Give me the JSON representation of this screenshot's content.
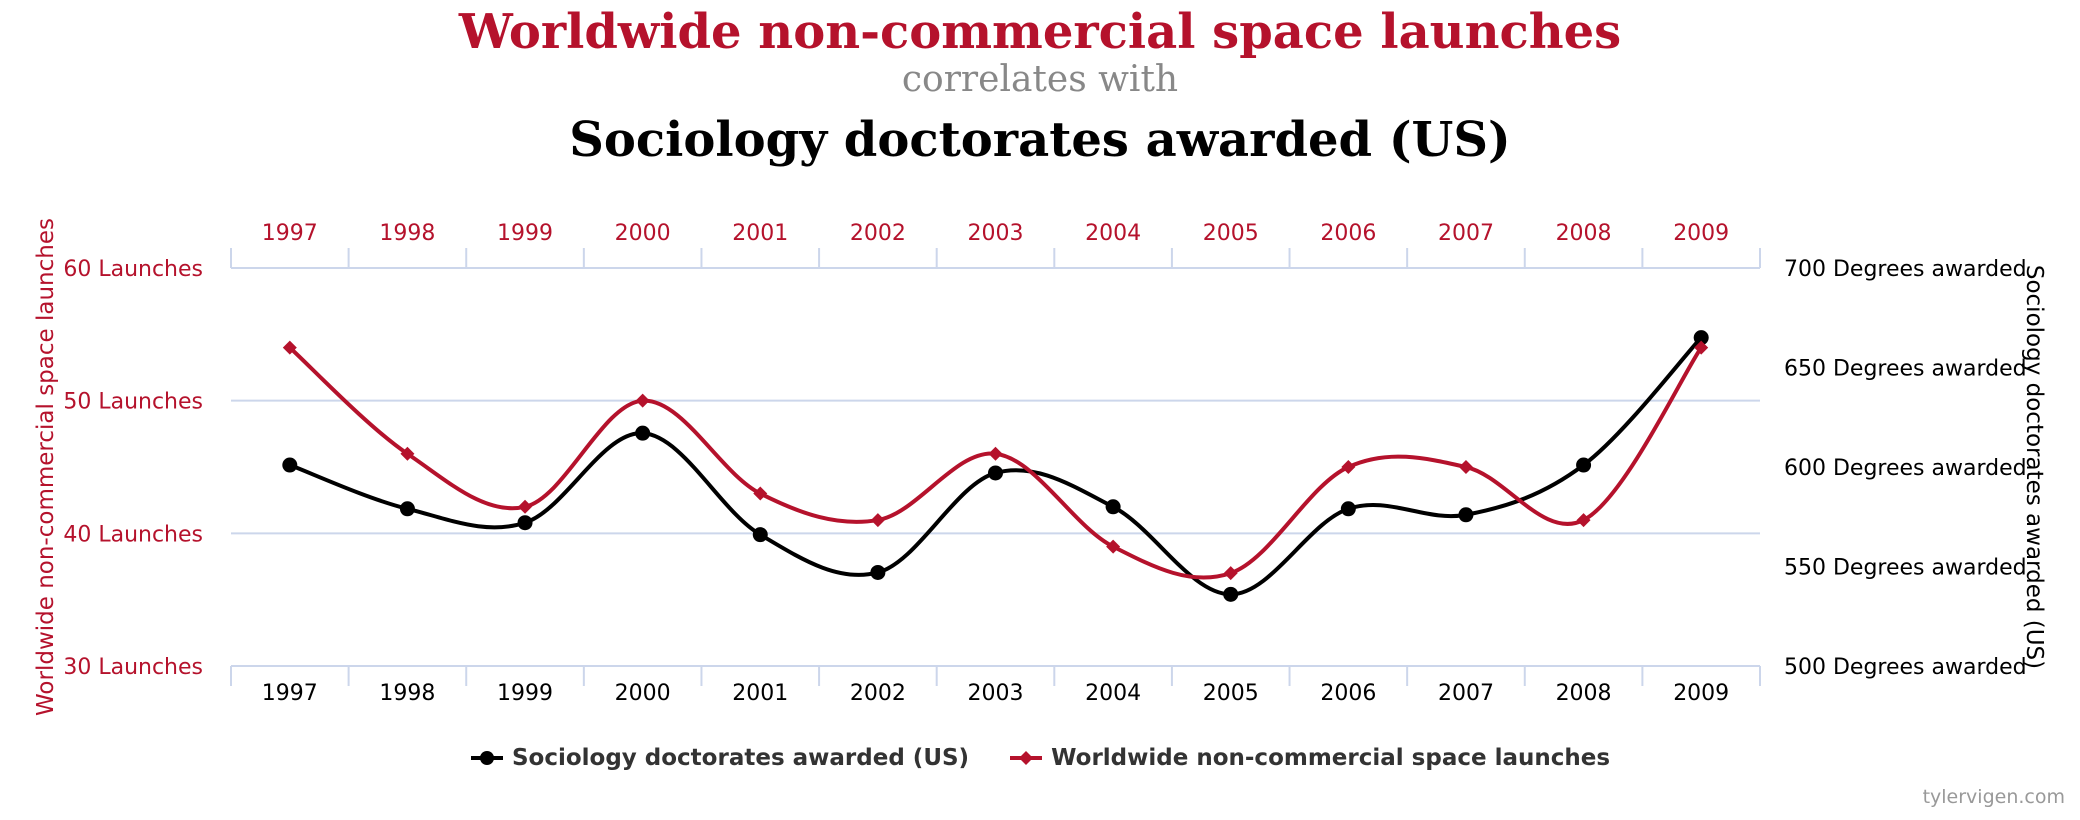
{
  "header": {
    "title1": "Worldwide non-commercial space launches",
    "connector": "correlates with",
    "title2": "Sociology doctorates awarded (US)"
  },
  "colors": {
    "launches": "#b5122c",
    "doctorates": "#000000",
    "axis": "#ccd6eb",
    "grid": "#ccd6eb"
  },
  "chart_data": {
    "type": "line",
    "x": [
      "1997",
      "1998",
      "1999",
      "2000",
      "2001",
      "2002",
      "2003",
      "2004",
      "2005",
      "2006",
      "2007",
      "2008",
      "2009"
    ],
    "left_axis": {
      "label": "Worldwide non-commercial space launches",
      "ylim": [
        30,
        60
      ],
      "ticks": [
        30,
        40,
        50,
        60
      ],
      "tick_labels": [
        "30 Launches",
        "40 Launches",
        "50 Launches",
        "60 Launches"
      ]
    },
    "right_axis": {
      "label": "Sociology doctorates awarded (US)",
      "ylim": [
        500,
        700
      ],
      "ticks": [
        500,
        550,
        600,
        650,
        700
      ],
      "tick_labels": [
        "500 Degrees awarded",
        "550 Degrees awarded",
        "600 Degrees awarded",
        "650 Degrees awarded",
        "700 Degrees awarded"
      ]
    },
    "series": [
      {
        "name": "Sociology doctorates awarded (US)",
        "axis": "right",
        "color": "#000000",
        "marker": "circle",
        "values": [
          601,
          579,
          572,
          617,
          566,
          547,
          597,
          580,
          536,
          579,
          576,
          601,
          665
        ]
      },
      {
        "name": "Worldwide non-commercial space launches",
        "axis": "left",
        "color": "#b5122c",
        "marker": "diamond",
        "values": [
          54,
          46,
          42,
          50,
          43,
          41,
          46,
          39,
          37,
          45,
          45,
          41,
          54
        ]
      }
    ],
    "grid": true,
    "legend": "bottom-center"
  },
  "credit": "tylervigen.com"
}
